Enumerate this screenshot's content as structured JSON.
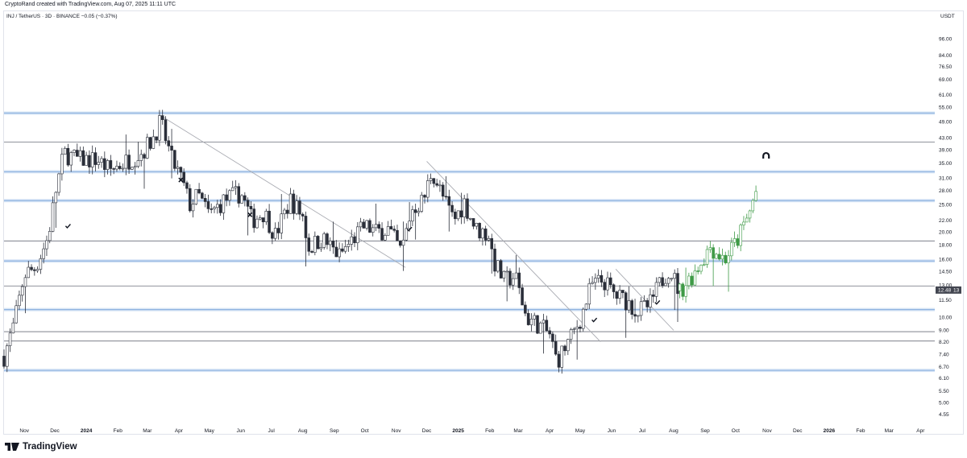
{
  "header": {
    "credit": "CryptoRand created with TradingView.com, Aug 07, 2025 11:11 UTC",
    "symbol_line": "INJ / TetherUS · 3D · BINANCE  −0.05 (−0.37%)"
  },
  "footer": {
    "brand": "TradingView"
  },
  "colors": {
    "bull": "#ffffff",
    "bear": "#2a2e39",
    "candle_border": "#2a2e39",
    "projection": "#3e9a46",
    "level_blue": "#90b4e0",
    "level_gray": "#6b6f7b",
    "trendline": "#a9abb2",
    "price_tag": "#434651"
  },
  "chart_data": {
    "type": "candlestick",
    "title": "",
    "xlabel": "",
    "ylabel": "USDT",
    "scale": "log",
    "ylim": [
      4.2,
      120
    ],
    "xlim": [
      "2023-10-12",
      "2026-04-15"
    ],
    "y_ticks": [
      "96.00",
      "84.00",
      "76.50",
      "69.00",
      "61.00",
      "55.00",
      "49.00",
      "43.00",
      "39.00",
      "35.00",
      "31.00",
      "28.00",
      "25.00",
      "22.00",
      "20.00",
      "18.00",
      "16.00",
      "14.50",
      "13.00",
      "11.50",
      "10.00",
      "9.00",
      "8.20",
      "7.40",
      "6.70",
      "6.10",
      "5.50",
      "5.00",
      "4.55"
    ],
    "x_ticks": [
      {
        "label": "Nov",
        "date": "2023-11-01"
      },
      {
        "label": "Dec",
        "date": "2023-12-01"
      },
      {
        "label": "2024",
        "date": "2024-01-01",
        "bold": true
      },
      {
        "label": "Feb",
        "date": "2024-02-01"
      },
      {
        "label": "Mar",
        "date": "2024-03-01"
      },
      {
        "label": "Apr",
        "date": "2024-04-01"
      },
      {
        "label": "May",
        "date": "2024-05-01"
      },
      {
        "label": "Jun",
        "date": "2024-06-01"
      },
      {
        "label": "Jul",
        "date": "2024-07-01"
      },
      {
        "label": "Aug",
        "date": "2024-08-01"
      },
      {
        "label": "Sep",
        "date": "2024-09-01"
      },
      {
        "label": "Oct",
        "date": "2024-10-01"
      },
      {
        "label": "Nov",
        "date": "2024-11-01"
      },
      {
        "label": "Dec",
        "date": "2024-12-01"
      },
      {
        "label": "2025",
        "date": "2025-01-01",
        "bold": true
      },
      {
        "label": "Feb",
        "date": "2025-02-01"
      },
      {
        "label": "Mar",
        "date": "2025-03-01"
      },
      {
        "label": "Apr",
        "date": "2025-04-01"
      },
      {
        "label": "May",
        "date": "2025-05-01"
      },
      {
        "label": "Jun",
        "date": "2025-06-01"
      },
      {
        "label": "Jul",
        "date": "2025-07-01"
      },
      {
        "label": "Aug",
        "date": "2025-08-01"
      },
      {
        "label": "Sep",
        "date": "2025-09-01"
      },
      {
        "label": "Oct",
        "date": "2025-10-01"
      },
      {
        "label": "Nov",
        "date": "2025-11-01"
      },
      {
        "label": "Dec",
        "date": "2025-12-01"
      },
      {
        "label": "2026",
        "date": "2026-01-01",
        "bold": true
      },
      {
        "label": "Feb",
        "date": "2026-02-01"
      },
      {
        "label": "Mar",
        "date": "2026-03-01"
      },
      {
        "label": "Apr",
        "date": "2026-04-01"
      }
    ],
    "last_price": {
      "label": "12.48",
      "extra": "13",
      "value": 12.48
    },
    "horizontal_levels": [
      {
        "price": 52.5,
        "style": "blue"
      },
      {
        "price": 41.5,
        "style": "gray"
      },
      {
        "price": 32.6,
        "style": "blue"
      },
      {
        "price": 25.8,
        "style": "blue"
      },
      {
        "price": 18.6,
        "style": "gray"
      },
      {
        "price": 15.8,
        "style": "blue"
      },
      {
        "price": 12.9,
        "style": "gray"
      },
      {
        "price": 10.65,
        "style": "blue"
      },
      {
        "price": 8.9,
        "style": "gray"
      },
      {
        "price": 8.25,
        "style": "gray"
      },
      {
        "price": 6.5,
        "style": "blue"
      }
    ],
    "trendlines": [
      {
        "from": {
          "date": "2024-03-14",
          "price": 51.5
        },
        "to": {
          "date": "2024-11-10",
          "price": 15.0
        }
      },
      {
        "from": {
          "date": "2024-12-01",
          "price": 35.5
        },
        "to": {
          "date": "2025-05-21",
          "price": 8.2
        }
      },
      {
        "from": {
          "date": "2025-06-05",
          "price": 14.8
        },
        "to": {
          "date": "2025-08-01",
          "price": 9.0
        }
      }
    ],
    "markers": [
      {
        "type": "check",
        "date": "2023-12-14",
        "price": 21.0
      },
      {
        "type": "cross",
        "date": "2024-04-03",
        "price": 30.5
      },
      {
        "type": "cross",
        "date": "2024-06-10",
        "price": 23.0
      },
      {
        "type": "check",
        "date": "2024-11-14",
        "price": 20.5
      },
      {
        "type": "check",
        "date": "2025-05-15",
        "price": 9.8
      },
      {
        "type": "check",
        "date": "2025-07-16",
        "price": 11.3
      },
      {
        "type": "magnet",
        "date": "2025-10-31",
        "price": 37.0
      }
    ],
    "projection_path": [
      {
        "date": "2025-08-07",
        "price": 12.4
      },
      {
        "date": "2025-08-22",
        "price": 14.5
      },
      {
        "date": "2025-09-06",
        "price": 17.8
      },
      {
        "date": "2025-09-20",
        "price": 16.0
      },
      {
        "date": "2025-10-02",
        "price": 18.5
      },
      {
        "date": "2025-10-14",
        "price": 23.0
      },
      {
        "date": "2025-10-22",
        "price": 28.5
      }
    ],
    "anchors": [
      {
        "date": "2023-10-12",
        "price": 7.3
      },
      {
        "date": "2023-10-22",
        "price": 9.5
      },
      {
        "date": "2023-11-01",
        "price": 14.2
      },
      {
        "date": "2023-11-12",
        "price": 15.0
      },
      {
        "date": "2023-11-24",
        "price": 19.0
      },
      {
        "date": "2023-12-02",
        "price": 28.0
      },
      {
        "date": "2023-12-10",
        "price": 38.0
      },
      {
        "date": "2023-12-24",
        "price": 36.0
      },
      {
        "date": "2024-01-12",
        "price": 36.0
      },
      {
        "date": "2024-01-24",
        "price": 33.0
      },
      {
        "date": "2024-02-12",
        "price": 36.0
      },
      {
        "date": "2024-02-24",
        "price": 38.0
      },
      {
        "date": "2024-03-05",
        "price": 42.0
      },
      {
        "date": "2024-03-14",
        "price": 49.0
      },
      {
        "date": "2024-03-25",
        "price": 36.0
      },
      {
        "date": "2024-04-03",
        "price": 31.0
      },
      {
        "date": "2024-04-12",
        "price": 25.0
      },
      {
        "date": "2024-04-20",
        "price": 27.0
      },
      {
        "date": "2024-05-01",
        "price": 23.0
      },
      {
        "date": "2024-05-16",
        "price": 26.0
      },
      {
        "date": "2024-06-01",
        "price": 27.5
      },
      {
        "date": "2024-06-12",
        "price": 22.0
      },
      {
        "date": "2024-06-24",
        "price": 23.5
      },
      {
        "date": "2024-07-05",
        "price": 19.5
      },
      {
        "date": "2024-07-20",
        "price": 26.0
      },
      {
        "date": "2024-08-02",
        "price": 22.5
      },
      {
        "date": "2024-08-06",
        "price": 17.5
      },
      {
        "date": "2024-08-20",
        "price": 19.0
      },
      {
        "date": "2024-09-06",
        "price": 16.5
      },
      {
        "date": "2024-09-20",
        "price": 19.0
      },
      {
        "date": "2024-10-01",
        "price": 21.0
      },
      {
        "date": "2024-10-12",
        "price": 20.0
      },
      {
        "date": "2024-10-24",
        "price": 20.5
      },
      {
        "date": "2024-11-06",
        "price": 17.0
      },
      {
        "date": "2024-11-16",
        "price": 24.0
      },
      {
        "date": "2024-11-28",
        "price": 26.0
      },
      {
        "date": "2024-12-06",
        "price": 33.0
      },
      {
        "date": "2024-12-18",
        "price": 26.0
      },
      {
        "date": "2024-12-28",
        "price": 22.0
      },
      {
        "date": "2025-01-07",
        "price": 25.5
      },
      {
        "date": "2025-01-18",
        "price": 20.5
      },
      {
        "date": "2025-02-01",
        "price": 19.5
      },
      {
        "date": "2025-02-04",
        "price": 16.0
      },
      {
        "date": "2025-02-15",
        "price": 13.5
      },
      {
        "date": "2025-02-26",
        "price": 14.0
      },
      {
        "date": "2025-03-09",
        "price": 10.0
      },
      {
        "date": "2025-03-20",
        "price": 9.5
      },
      {
        "date": "2025-04-01",
        "price": 8.7
      },
      {
        "date": "2025-04-08",
        "price": 7.0
      },
      {
        "date": "2025-04-22",
        "price": 8.5
      },
      {
        "date": "2025-05-02",
        "price": 10.0
      },
      {
        "date": "2025-05-12",
        "price": 13.0
      },
      {
        "date": "2025-05-24",
        "price": 13.5
      },
      {
        "date": "2025-06-04",
        "price": 12.0
      },
      {
        "date": "2025-06-15",
        "price": 11.5
      },
      {
        "date": "2025-06-26",
        "price": 10.5
      },
      {
        "date": "2025-07-08",
        "price": 11.0
      },
      {
        "date": "2025-07-20",
        "price": 13.5
      },
      {
        "date": "2025-07-28",
        "price": 15.0
      },
      {
        "date": "2025-08-06",
        "price": 12.5
      }
    ]
  }
}
